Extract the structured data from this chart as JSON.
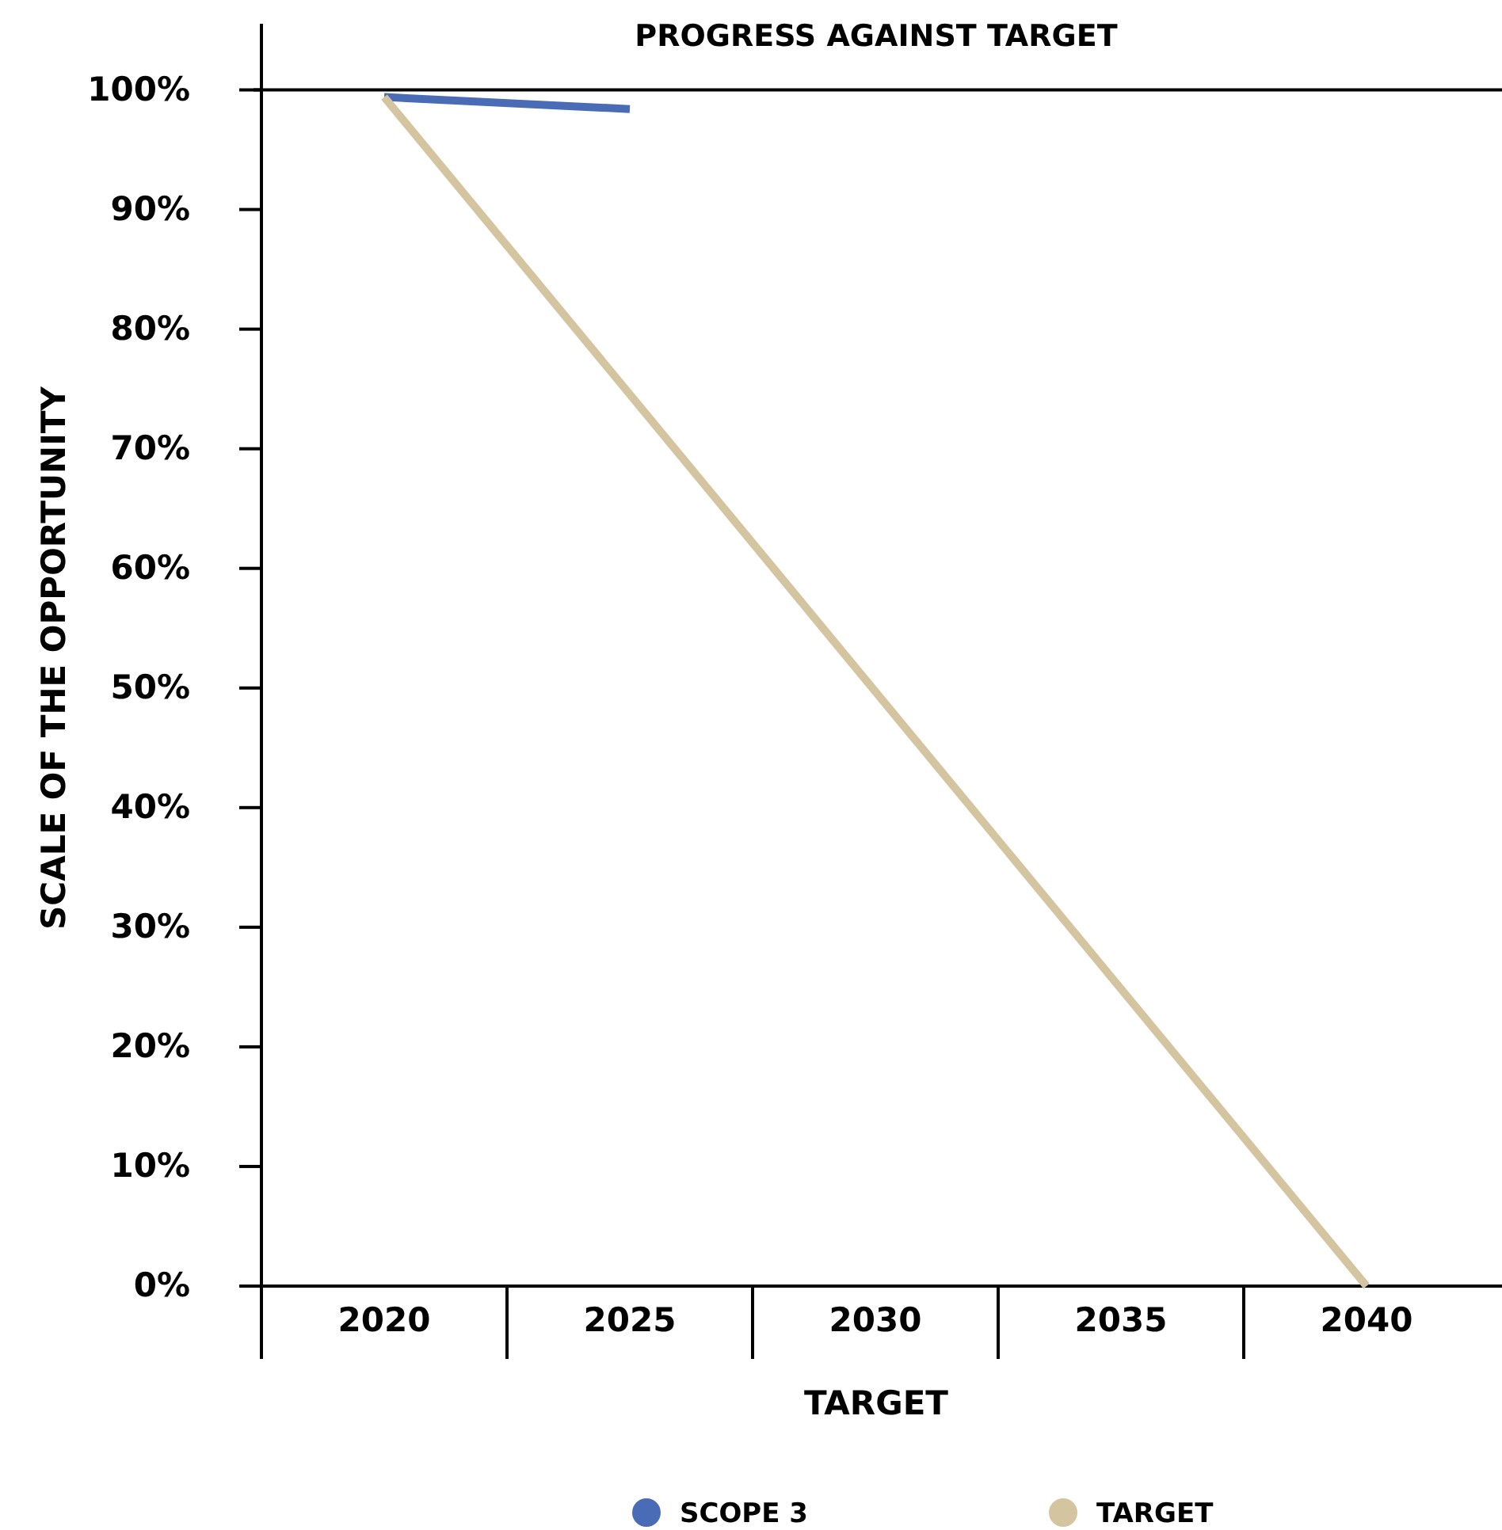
{
  "chart_data": {
    "type": "line",
    "title": "PROGRESS AGAINST TARGET",
    "xlabel": "TARGET",
    "ylabel": "SCALE OF THE OPPORTUNITY",
    "categories": [
      "2020",
      "2025",
      "2030",
      "2035",
      "2040"
    ],
    "series": [
      {
        "name": "SCOPE 3",
        "color": "#4a6bb5",
        "values": [
          99.4,
          98.4,
          null,
          null,
          null
        ]
      },
      {
        "name": "TARGET",
        "color": "#d4c5a0",
        "values": [
          99.4,
          null,
          null,
          null,
          0
        ]
      }
    ],
    "ylim": [
      0,
      105
    ],
    "yticks": [
      {
        "value": 0,
        "label": "0%"
      },
      {
        "value": 10,
        "label": "10%"
      },
      {
        "value": 20,
        "label": "20%"
      },
      {
        "value": 30,
        "label": "30%"
      },
      {
        "value": 40,
        "label": "40%"
      },
      {
        "value": 50,
        "label": "50%"
      },
      {
        "value": 60,
        "label": "60%"
      },
      {
        "value": 70,
        "label": "70%"
      },
      {
        "value": 80,
        "label": "80%"
      },
      {
        "value": 90,
        "label": "90%"
      },
      {
        "value": 100,
        "label": "100%"
      }
    ],
    "ref_lines": [
      {
        "axis": "y",
        "value": 100,
        "label": null,
        "color": "#000000"
      }
    ],
    "grid": false,
    "legend": "bottom",
    "marker": "none",
    "line_style": "solid"
  }
}
